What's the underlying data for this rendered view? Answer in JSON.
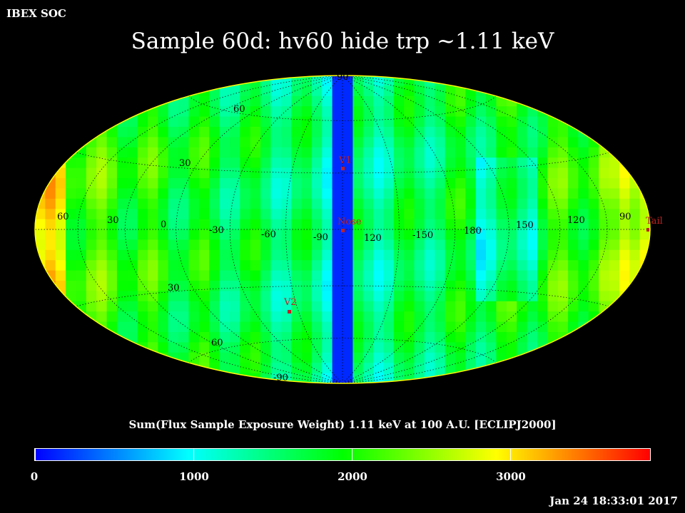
{
  "header": {
    "corner_label": "IBEX SOC",
    "title": "Sample 60d: hv60 hide trp ~1.11 keV"
  },
  "map": {
    "projection": "Hammer-Aitoff",
    "frame": "ECLIPJ2000",
    "center_longitude": 90,
    "longitude_labels": [
      "60",
      "30",
      "0",
      "-30",
      "-60",
      "-90",
      "120",
      "-150",
      "180",
      "150",
      "120",
      "90"
    ],
    "latitude_labels": [
      "90",
      "60",
      "30",
      "30",
      "60",
      "-90"
    ],
    "markers": [
      {
        "name": "V1",
        "lon": 255,
        "lat": 34
      },
      {
        "name": "Nose",
        "lon": 255,
        "lat": 5
      },
      {
        "name": "V2",
        "lon": 289,
        "lat": -32
      },
      {
        "name": "Tail",
        "lon": 75,
        "lat": 5
      }
    ],
    "colors": {
      "marker": "#c02020",
      "grid": "#000000"
    }
  },
  "caption": "Sum(Flux Sample Exposure Weight)  1.11 keV at 100 A.U. [ECLIPJ2000]",
  "colorbar": {
    "min": 0,
    "max": 3900,
    "tick_labels": [
      "0",
      "1000",
      "2000",
      "3000"
    ],
    "tick_values": [
      0,
      1000,
      2000,
      3000
    ],
    "colormap": [
      "#0000ff",
      "#00ffff",
      "#00ff00",
      "#ffff00",
      "#ff0000"
    ]
  },
  "timestamp": "Jan 24 18:33:01 2017"
}
